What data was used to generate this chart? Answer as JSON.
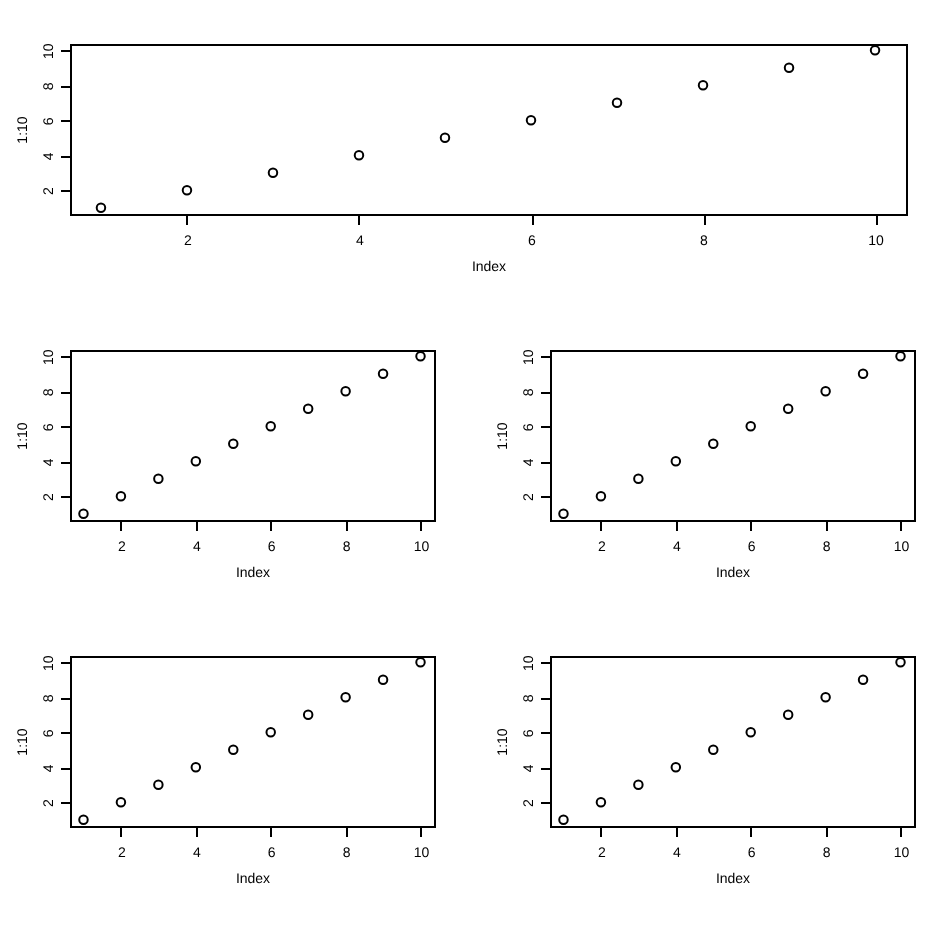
{
  "chart_data": [
    {
      "type": "scatter",
      "x": [
        1,
        2,
        3,
        4,
        5,
        6,
        7,
        8,
        9,
        10
      ],
      "values": [
        1,
        2,
        3,
        4,
        5,
        6,
        7,
        8,
        9,
        10
      ],
      "color": "#000000",
      "marker": "circle",
      "xlabel": "Index",
      "ylabel": "1:10",
      "xlim": [
        0.64,
        10.36
      ],
      "ylim": [
        0.64,
        10.36
      ],
      "xticks": [
        2,
        4,
        6,
        8,
        10
      ],
      "yticks": [
        2,
        4,
        6,
        8,
        10
      ],
      "grid": false
    },
    {
      "type": "scatter",
      "x": [
        1,
        2,
        3,
        4,
        5,
        6,
        7,
        8,
        9,
        10
      ],
      "values": [
        1,
        2,
        3,
        4,
        5,
        6,
        7,
        8,
        9,
        10
      ],
      "color": "#000000",
      "marker": "circle",
      "xlabel": "Index",
      "ylabel": "1:10",
      "xlim": [
        0.64,
        10.36
      ],
      "ylim": [
        0.64,
        10.36
      ],
      "xticks": [
        2,
        4,
        6,
        8,
        10
      ],
      "yticks": [
        2,
        4,
        6,
        8,
        10
      ],
      "grid": false
    },
    {
      "type": "scatter",
      "x": [
        1,
        2,
        3,
        4,
        5,
        6,
        7,
        8,
        9,
        10
      ],
      "values": [
        1,
        2,
        3,
        4,
        5,
        6,
        7,
        8,
        9,
        10
      ],
      "color": "#000000",
      "marker": "circle",
      "xlabel": "Index",
      "ylabel": "1:10",
      "xlim": [
        0.64,
        10.36
      ],
      "ylim": [
        0.64,
        10.36
      ],
      "xticks": [
        2,
        4,
        6,
        8,
        10
      ],
      "yticks": [
        2,
        4,
        6,
        8,
        10
      ],
      "grid": false
    },
    {
      "type": "scatter",
      "x": [
        1,
        2,
        3,
        4,
        5,
        6,
        7,
        8,
        9,
        10
      ],
      "values": [
        1,
        2,
        3,
        4,
        5,
        6,
        7,
        8,
        9,
        10
      ],
      "color": "#000000",
      "marker": "circle",
      "xlabel": "Index",
      "ylabel": "1:10",
      "xlim": [
        0.64,
        10.36
      ],
      "ylim": [
        0.64,
        10.36
      ],
      "xticks": [
        2,
        4,
        6,
        8,
        10
      ],
      "yticks": [
        2,
        4,
        6,
        8,
        10
      ],
      "grid": false
    },
    {
      "type": "scatter",
      "x": [
        1,
        2,
        3,
        4,
        5,
        6,
        7,
        8,
        9,
        10
      ],
      "values": [
        1,
        2,
        3,
        4,
        5,
        6,
        7,
        8,
        9,
        10
      ],
      "color": "#000000",
      "marker": "circle",
      "xlabel": "Index",
      "ylabel": "1:10",
      "xlim": [
        0.64,
        10.36
      ],
      "ylim": [
        0.64,
        10.36
      ],
      "xticks": [
        2,
        4,
        6,
        8,
        10
      ],
      "yticks": [
        2,
        4,
        6,
        8,
        10
      ],
      "grid": false
    }
  ]
}
